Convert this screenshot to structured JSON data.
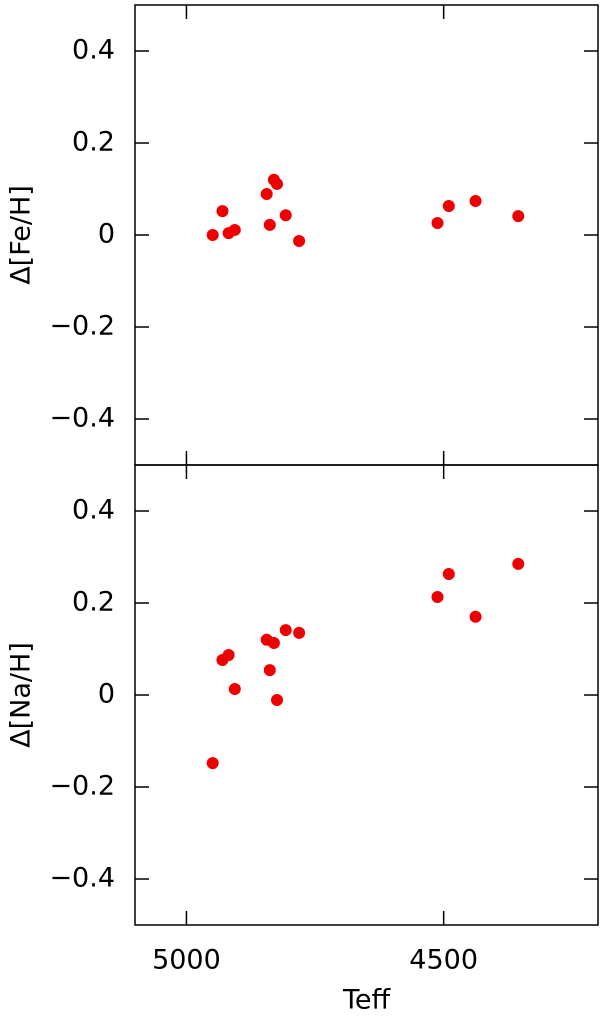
{
  "chart_data": [
    {
      "type": "scatter",
      "ylabel": "Δ[Fe/H]",
      "x": [
        4949,
        4930,
        4918,
        4906,
        4844,
        4830,
        4824,
        4838,
        4807,
        4781,
        4512,
        4490,
        4438,
        4355
      ],
      "series": [
        {
          "color": "#ee0000",
          "values": [
            0,
            0.052,
            0.004,
            0.011,
            0.089,
            0.12,
            0.111,
            0.022,
            0.043,
            -0.013,
            0.026,
            0.063,
            0.074,
            0.041
          ]
        }
      ],
      "xlim": [
        5100,
        4200
      ],
      "xticks": [
        5000,
        4500
      ],
      "ylim": [
        -0.5,
        0.5
      ],
      "yticks": [
        {
          "value": -0.4,
          "label": "−0.4"
        },
        {
          "value": -0.2,
          "label": "−0.2"
        },
        0,
        0.2,
        0.4
      ]
    },
    {
      "type": "scatter",
      "ylabel": "Δ[Na/H]",
      "xlabel": "Teff",
      "x": [
        4949,
        4930,
        4918,
        4906,
        4844,
        4838,
        4830,
        4824,
        4807,
        4781,
        4512,
        4490,
        4438,
        4355
      ],
      "series": [
        {
          "color": "#ee0000",
          "values": [
            -0.148,
            0.076,
            0.087,
            0.013,
            0.12,
            0.054,
            0.113,
            -0.011,
            0.141,
            0.135,
            0.213,
            0.263,
            0.17,
            0.285
          ]
        }
      ],
      "xlim": [
        5100,
        4200
      ],
      "xticks": [
        5000,
        4500
      ],
      "ylim": [
        -0.5,
        0.5
      ],
      "yticks": [
        {
          "value": -0.4,
          "label": "−0.4"
        },
        {
          "value": -0.2,
          "label": "−0.2"
        },
        0,
        0.2,
        0.4
      ]
    }
  ]
}
